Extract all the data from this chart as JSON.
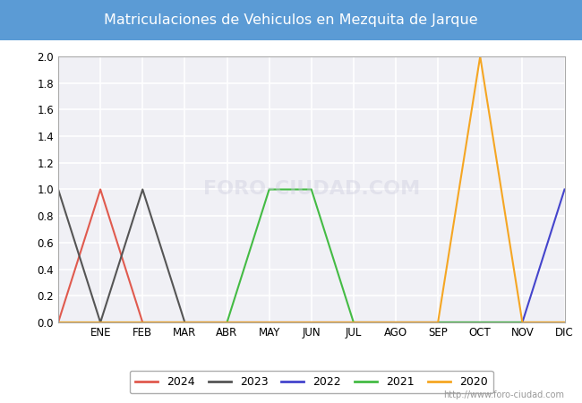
{
  "title": "Matriculaciones de Vehiculos en Mezquita de Jarque",
  "title_color": "#ffffff",
  "title_bg_color": "#5b9bd5",
  "figure_bg_color": "#ffffff",
  "plot_bg_color": "#f0f0f5",
  "months": [
    0,
    1,
    2,
    3,
    4,
    5,
    6,
    7,
    8,
    9,
    10,
    11,
    12
  ],
  "month_labels": [
    "ENE",
    "FEB",
    "MAR",
    "ABR",
    "MAY",
    "JUN",
    "JUL",
    "AGO",
    "SEP",
    "OCT",
    "NOV",
    "DIC"
  ],
  "ylim": [
    0.0,
    2.0
  ],
  "yticks": [
    0.0,
    0.2,
    0.4,
    0.6,
    0.8,
    1.0,
    1.2,
    1.4,
    1.6,
    1.8,
    2.0
  ],
  "series": {
    "2024": {
      "color": "#e05a4e",
      "data": [
        0,
        1,
        0,
        0,
        0,
        0,
        0,
        0,
        0,
        0,
        0,
        0,
        0
      ]
    },
    "2023": {
      "color": "#555555",
      "data": [
        1,
        0,
        1,
        0,
        0,
        0,
        0,
        0,
        0,
        0,
        0,
        0,
        0
      ]
    },
    "2022": {
      "color": "#4444cc",
      "data": [
        0,
        0,
        0,
        0,
        0,
        0,
        0,
        0,
        0,
        0,
        0,
        0,
        1
      ]
    },
    "2021": {
      "color": "#44bb44",
      "data": [
        0,
        0,
        0,
        0,
        0,
        1,
        1,
        0,
        0,
        0,
        0,
        0,
        0
      ]
    },
    "2020": {
      "color": "#f5a623",
      "data": [
        0,
        0,
        0,
        0,
        0,
        0,
        0,
        0,
        0,
        0,
        2,
        0,
        0
      ]
    }
  },
  "legend_order": [
    "2024",
    "2023",
    "2022",
    "2021",
    "2020"
  ],
  "watermark": "http://www.foro-ciudad.com",
  "grid_color": "#ffffff",
  "grid_linewidth": 1.2,
  "spine_color": "#aaaaaa"
}
